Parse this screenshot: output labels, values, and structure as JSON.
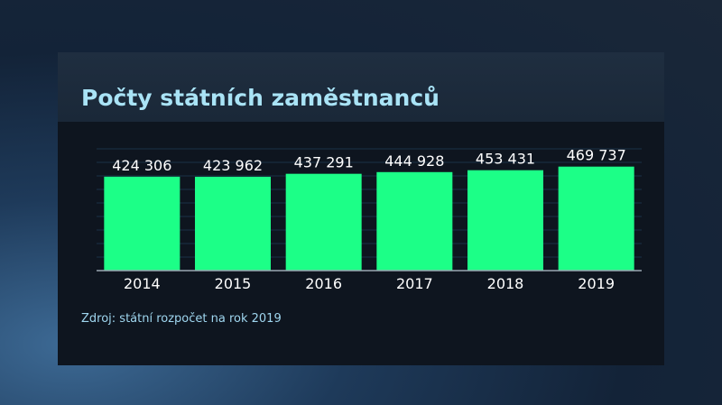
{
  "chart_data": {
    "type": "bar",
    "title": "Počty státních zaměstnanců",
    "categories": [
      "2014",
      "2015",
      "2016",
      "2017",
      "2018",
      "2019"
    ],
    "values": [
      424306,
      423962,
      437291,
      444928,
      453431,
      469737
    ],
    "value_labels": [
      "424 306",
      "423 962",
      "437 291",
      "444 928",
      "453 431",
      "469 737"
    ],
    "ylim": [
      0,
      550000
    ],
    "grid": true,
    "bar_color": "#1cff87",
    "source": "Zdroj: státní rozpočet na rok 2019"
  }
}
